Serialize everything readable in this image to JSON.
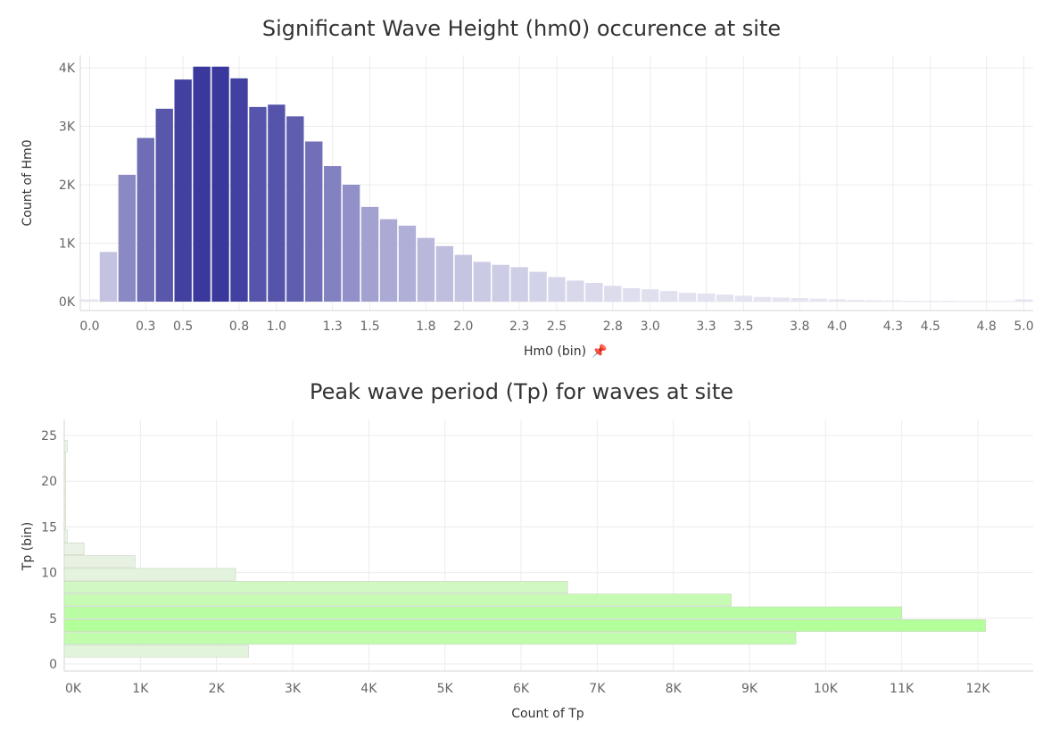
{
  "chart_data": [
    {
      "type": "bar",
      "title": "Significant Wave Height (hm0) occurence at site",
      "xlabel": "Hm0 (bin)",
      "xlabel_pin": "📌",
      "ylabel": "Count of Hm0",
      "bin_width": 0.1,
      "x": [
        0.0,
        0.1,
        0.2,
        0.3,
        0.4,
        0.5,
        0.6,
        0.7,
        0.8,
        0.9,
        1.0,
        1.1,
        1.2,
        1.3,
        1.4,
        1.5,
        1.6,
        1.7,
        1.8,
        1.9,
        2.0,
        2.1,
        2.2,
        2.3,
        2.4,
        2.5,
        2.6,
        2.7,
        2.8,
        2.9,
        3.0,
        3.1,
        3.2,
        3.3,
        3.4,
        3.5,
        3.6,
        3.7,
        3.8,
        3.9,
        4.0,
        4.1,
        4.2,
        4.3,
        4.4,
        4.5,
        4.6,
        4.7,
        4.8,
        4.9,
        5.0
      ],
      "values": [
        40,
        850,
        2170,
        2800,
        3300,
        3800,
        4020,
        4020,
        3820,
        3330,
        3370,
        3170,
        2740,
        2320,
        2000,
        1620,
        1410,
        1300,
        1090,
        950,
        800,
        680,
        630,
        590,
        510,
        420,
        360,
        320,
        270,
        230,
        210,
        180,
        150,
        140,
        120,
        100,
        80,
        70,
        60,
        50,
        40,
        30,
        25,
        20,
        15,
        15,
        15,
        10,
        10,
        10,
        40
      ],
      "x_ticks": [
        "0.0",
        "0.3",
        "0.5",
        "0.8",
        "1.0",
        "1.3",
        "1.5",
        "1.8",
        "2.0",
        "2.3",
        "2.5",
        "2.8",
        "3.0",
        "3.3",
        "3.5",
        "3.8",
        "4.0",
        "4.3",
        "4.5",
        "4.8",
        "5.0"
      ],
      "y_ticks": [
        "0K",
        "1K",
        "2K",
        "3K",
        "4K"
      ],
      "ylim": [
        0,
        4000
      ],
      "color_scale": [
        "#e8e8f3",
        "#3a389c"
      ],
      "grid": true
    },
    {
      "type": "bar",
      "orientation": "horizontal",
      "title": "Peak wave period (Tp) for waves at site",
      "xlabel": "Count of Tp",
      "ylabel": "Tp (bin)",
      "bin_width": 1.4,
      "bins": [
        1.4,
        2.8,
        4.2,
        5.6,
        7.0,
        8.4,
        9.8,
        11.2,
        12.6,
        14.0,
        15.4,
        16.8,
        18.2,
        19.6,
        21.0,
        22.4,
        23.8
      ],
      "values": [
        2420,
        9610,
        12100,
        11000,
        8760,
        6610,
        2250,
        930,
        260,
        40,
        10,
        5,
        5,
        5,
        5,
        5,
        40
      ],
      "x_ticks": [
        "0K",
        "1K",
        "2K",
        "3K",
        "4K",
        "5K",
        "6K",
        "7K",
        "8K",
        "9K",
        "10K",
        "11K",
        "12K"
      ],
      "y_ticks": [
        "0",
        "5",
        "10",
        "15",
        "20",
        "25"
      ],
      "xlim": [
        0,
        12000
      ],
      "ylim": [
        0,
        25
      ],
      "color_scale": [
        "#eaf2e6",
        "#b3ff99"
      ],
      "grid": true
    }
  ]
}
